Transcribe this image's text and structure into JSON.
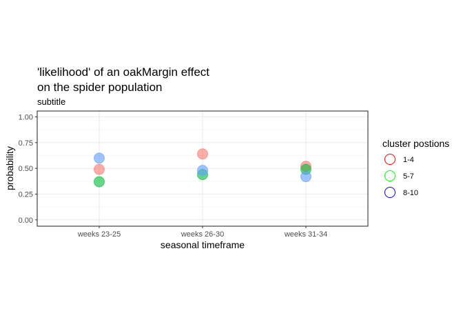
{
  "chart_data": {
    "type": "scatter",
    "title": [
      "'likelihood' of an oakMargin effect",
      "on the spider population"
    ],
    "subtitle": "subtitle",
    "xlabel": "seasonal timeframe",
    "ylabel": "probability",
    "categories": [
      "weeks 23-25",
      "weeks 26-30",
      "weeks 31-34"
    ],
    "ylim": [
      0,
      1
    ],
    "yticks": [
      0.0,
      0.25,
      0.5,
      0.75,
      1.0
    ],
    "ytick_labels": [
      "0.00",
      "0.25",
      "0.50",
      "0.75",
      "1.00"
    ],
    "grid": true,
    "legend": {
      "title": "cluster postions",
      "position": "right"
    },
    "series": [
      {
        "name": "1-4",
        "color": "#F8766D",
        "values": [
          0.49,
          0.64,
          0.52
        ]
      },
      {
        "name": "5-7",
        "color": "#00BA38",
        "values": [
          0.37,
          0.44,
          0.49
        ]
      },
      {
        "name": "8-10",
        "color": "#619CFF",
        "values": [
          0.6,
          0.48,
          0.42
        ]
      }
    ],
    "legend_stroke_colors": [
      "#FF0000",
      "#00FF00",
      "#0000FF"
    ]
  }
}
